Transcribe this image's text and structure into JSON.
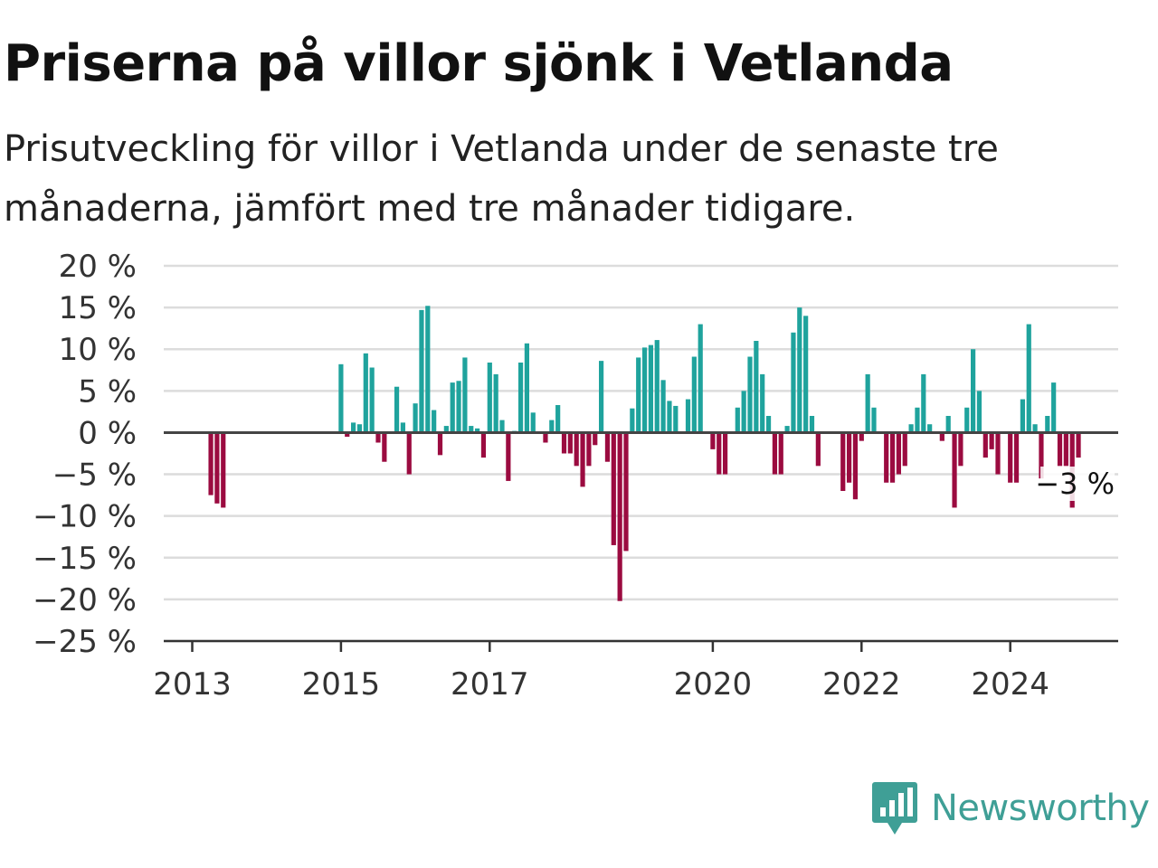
{
  "title": "Priserna på villor sjönk i Vetlanda",
  "subtitle": "Prisutveckling för villor i Vetlanda under de senaste tre månaderna, jämfört med tre månader tidigare.",
  "brand": {
    "name": "Newsworthy",
    "icon": "newsworthy-logo-icon",
    "color": "#3f9f96"
  },
  "colors": {
    "positive": "#1fa39d",
    "negative": "#9b0b40",
    "grid": "#dcdcdc",
    "axis": "#444444"
  },
  "chart_data": {
    "type": "bar",
    "title": "Priserna på villor sjönk i Vetlanda",
    "subtitle": "Prisutveckling för villor i Vetlanda under de senaste tre månaderna, jämfört med tre månader tidigare.",
    "x_type": "date",
    "x_ticks": [
      "2013",
      "2015",
      "2017",
      "2020",
      "2022",
      "2024"
    ],
    "y_ticks": [
      "20 %",
      "15 %",
      "10 %",
      "5 %",
      "0 %",
      "−5 %",
      "−10 %",
      "−15 %",
      "−20 %",
      "−25 %"
    ],
    "y_tick_values": [
      20,
      15,
      10,
      5,
      0,
      -5,
      -10,
      -15,
      -20,
      -25
    ],
    "ylim": [
      -25,
      20
    ],
    "grid": true,
    "last_label": "−3 %",
    "series": [
      {
        "x": [
          "2013-04",
          "2013-05",
          "2013-06",
          "2015-01",
          "2015-02",
          "2015-03",
          "2015-04",
          "2015-05",
          "2015-06",
          "2015-07",
          "2015-08",
          "2015-09",
          "2015-10",
          "2015-11",
          "2015-12",
          "2016-01",
          "2016-02",
          "2016-03",
          "2016-04",
          "2016-05",
          "2016-06",
          "2016-07",
          "2016-08",
          "2016-09",
          "2016-10",
          "2016-11",
          "2016-12",
          "2017-01",
          "2017-02",
          "2017-03",
          "2017-04",
          "2017-05",
          "2017-06",
          "2017-07",
          "2017-08",
          "2017-09",
          "2017-10",
          "2017-11",
          "2017-12",
          "2018-01",
          "2018-02",
          "2018-03",
          "2018-04",
          "2018-05",
          "2018-06",
          "2018-07",
          "2018-08",
          "2018-09",
          "2018-10",
          "2018-11",
          "2018-12",
          "2019-01",
          "2019-02",
          "2019-03",
          "2019-04",
          "2019-05",
          "2019-06",
          "2019-07",
          "2019-08",
          "2019-09",
          "2019-10",
          "2019-11",
          "2019-12",
          "2020-01",
          "2020-02",
          "2020-03",
          "2020-04",
          "2020-05",
          "2020-06",
          "2020-07",
          "2020-08",
          "2020-09",
          "2020-10",
          "2020-11",
          "2020-12",
          "2021-01",
          "2021-02",
          "2021-03",
          "2021-04",
          "2021-05",
          "2021-06",
          "2021-10",
          "2021-11",
          "2021-12",
          "2022-01",
          "2022-02",
          "2022-03",
          "2022-04",
          "2022-05",
          "2022-06",
          "2022-07",
          "2022-08",
          "2022-09",
          "2022-10",
          "2022-11",
          "2022-12",
          "2023-01",
          "2023-02",
          "2023-03",
          "2023-04",
          "2023-05",
          "2023-06",
          "2023-07",
          "2023-08",
          "2023-09",
          "2023-10",
          "2023-11",
          "2023-12",
          "2024-01",
          "2024-02",
          "2024-03",
          "2024-04",
          "2024-05",
          "2024-06",
          "2024-07",
          "2024-08",
          "2024-09",
          "2024-10",
          "2024-11",
          "2024-12"
        ],
        "values": [
          -7.5,
          -8.5,
          -9,
          8.2,
          -0.5,
          1.2,
          1.0,
          9.5,
          7.8,
          -1.2,
          -3.5,
          0,
          5.5,
          1.2,
          -5,
          3.5,
          14.7,
          15.2,
          2.7,
          -2.7,
          0.8,
          6.0,
          6.2,
          9.0,
          0.8,
          0.5,
          -3.0,
          8.4,
          7.0,
          1.5,
          -5.8,
          0.2,
          8.4,
          10.7,
          2.4,
          0,
          -1.2,
          1.5,
          3.3,
          -2.5,
          -2.5,
          -4.0,
          -6.5,
          -4.0,
          -1.5,
          8.6,
          -3.5,
          -13.5,
          -20.2,
          -14.2,
          2.9,
          9.0,
          10.2,
          10.5,
          11.1,
          6.3,
          3.8,
          3.2,
          0,
          4.0,
          9.1,
          13.0,
          0,
          -2.0,
          -5.0,
          -5.0,
          0,
          3.0,
          5.0,
          9.1,
          11.0,
          7.0,
          2.0,
          -5.0,
          -5.0,
          0.8,
          12.0,
          15.0,
          14.0,
          2.0,
          -4.0,
          -7.0,
          -6.0,
          -8.0,
          -1.0,
          7.0,
          3.0,
          0,
          -6.0,
          -6.0,
          -5.0,
          -4.0,
          1.0,
          3.0,
          7.0,
          1.0,
          0,
          -1.0,
          2.0,
          -9.0,
          -4.0,
          3.0,
          10.0,
          5.0,
          -3.0,
          -2.0,
          -5.0,
          0,
          -6.0,
          -6.0,
          4.0,
          13.0,
          1.0,
          -5.5,
          2.0,
          6.0,
          -4.0,
          -4.0,
          -9.0,
          -3.0
        ]
      }
    ]
  }
}
